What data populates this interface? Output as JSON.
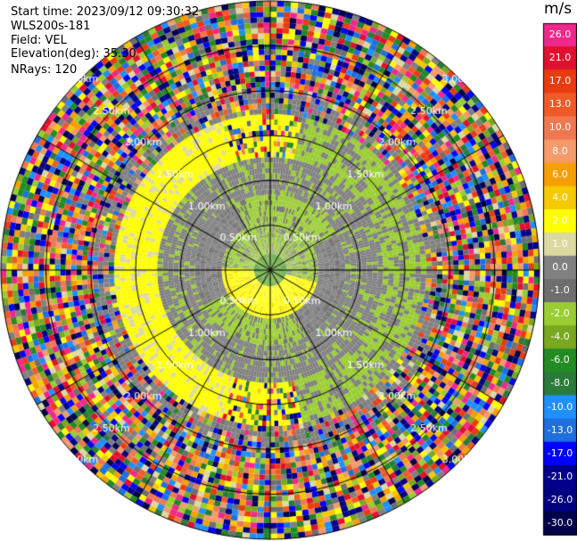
{
  "info": {
    "start_time": "Start time: 2023/09/12 09:30:32",
    "instrument": "WLS200s-181",
    "field": "Field: VEL",
    "elevation": "Elevation(deg): 35.30",
    "nrays": "NRays: 120"
  },
  "chart_data": {
    "type": "heatmap",
    "subtype": "polar PPI scan",
    "field": "VEL",
    "units": "m/s",
    "nrays": 120,
    "range_rings_km": [
      0.5,
      1.0,
      1.5,
      2.0,
      2.5,
      3.0
    ],
    "ring_labels": [
      "0.50km",
      "1.00km",
      "1.50km",
      "2.00km",
      "2.50km",
      "3.00km"
    ],
    "spokes_deg": [
      0,
      30,
      60,
      90,
      120,
      150,
      180,
      210,
      240,
      270,
      300,
      330
    ],
    "colorbar": {
      "title": "m/s",
      "tick_labels": [
        "26.0",
        "21.0",
        "17.0",
        "13.0",
        "10.0",
        "8.0",
        "6.0",
        "4.0",
        "2.0",
        "1.0",
        "0.0",
        "-1.0",
        "-2.0",
        "-4.0",
        "-6.0",
        "-8.0",
        "-10.0",
        "-13.0",
        "-17.0",
        "-21.0",
        "-26.0",
        "-30.0"
      ],
      "colors": [
        "#f0288c",
        "#e01030",
        "#e83c10",
        "#f05a28",
        "#f07850",
        "#f59a6a",
        "#f5a000",
        "#f5c800",
        "#ffff00",
        "#dcd9a0",
        "#808080",
        "#6e6e6e",
        "#9acd32",
        "#7aa81e",
        "#228b22",
        "#2a7a3a",
        "#1e90ff",
        "#1f6fe0",
        "#0000ff",
        "#00008b",
        "#000080",
        "#00004a"
      ]
    }
  }
}
